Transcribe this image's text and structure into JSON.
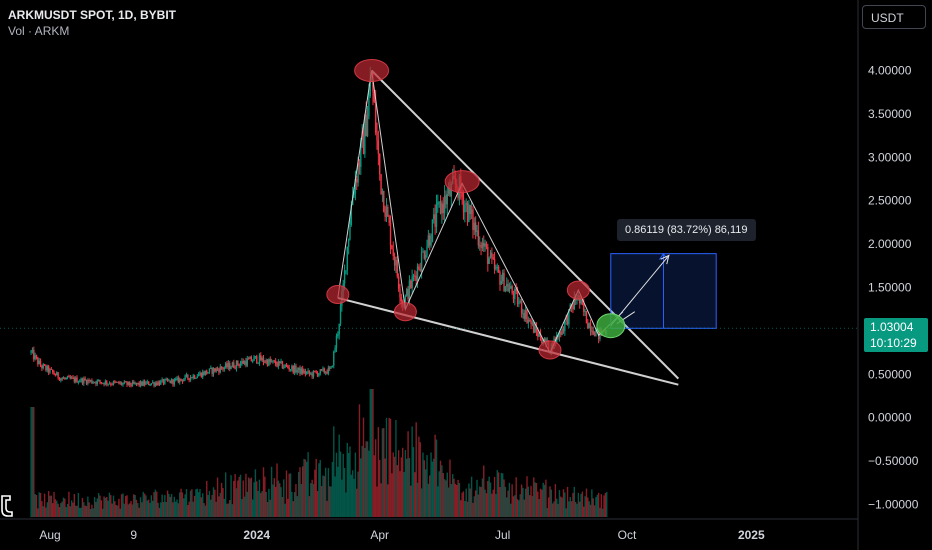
{
  "header": {
    "symbol_line": "ARKMUSDT SPOT, 1D, BYBIT",
    "volume_line": "Vol · ARKM"
  },
  "currency_button": "USDT",
  "price_tag": {
    "value": "1.03004",
    "countdown": "10:10:29"
  },
  "measure_label": "0.86119 (83.72%) 86,119",
  "colors": {
    "background": "#000000",
    "up": "#089981",
    "down": "#f23645",
    "axis_text": "#d1d4dc",
    "drawing": "#c8c8c8",
    "measure_box": "#2962ff"
  },
  "icons": {
    "tv_logo": "tradingview-logo-icon"
  },
  "chart_data": {
    "type": "candlestick",
    "y_axis": {
      "ticks": [
        "4.00000",
        "3.50000",
        "3.00000",
        "2.50000",
        "2.00000",
        "1.50000",
        "1.03004",
        "0.50000",
        "0.00000",
        "−0.50000",
        "−1.00000"
      ],
      "range": [
        -1.08,
        4.35
      ]
    },
    "x_axis": {
      "ticks": [
        "Aug",
        "9",
        "2024",
        "Apr",
        "Jul",
        "Oct",
        "2025"
      ],
      "range": [
        "2023-07-18",
        "2025-03-01"
      ]
    },
    "price_path": [
      [
        "2023-07-18",
        0.75
      ],
      [
        "2023-07-25",
        0.6
      ],
      [
        "2023-08-10",
        0.45
      ],
      [
        "2023-09-01",
        0.42
      ],
      [
        "2023-10-01",
        0.38
      ],
      [
        "2023-11-01",
        0.42
      ],
      [
        "2023-12-01",
        0.55
      ],
      [
        "2024-01-01",
        0.68
      ],
      [
        "2024-01-20",
        0.6
      ],
      [
        "2024-02-10",
        0.5
      ],
      [
        "2024-02-25",
        0.55
      ],
      [
        "2024-03-01",
        1.0
      ],
      [
        "2024-03-05",
        1.5
      ],
      [
        "2024-03-12",
        2.6
      ],
      [
        "2024-03-20",
        3.2
      ],
      [
        "2024-03-26",
        3.9
      ],
      [
        "2024-04-01",
        2.8
      ],
      [
        "2024-04-10",
        2.0
      ],
      [
        "2024-04-18",
        1.3
      ],
      [
        "2024-05-01",
        1.8
      ],
      [
        "2024-05-15",
        2.4
      ],
      [
        "2024-05-28",
        2.7
      ],
      [
        "2024-06-10",
        2.2
      ],
      [
        "2024-06-25",
        1.7
      ],
      [
        "2024-07-10",
        1.4
      ],
      [
        "2024-07-25",
        1.0
      ],
      [
        "2024-08-05",
        0.8
      ],
      [
        "2024-08-15",
        1.05
      ],
      [
        "2024-08-25",
        1.4
      ],
      [
        "2024-09-02",
        1.1
      ],
      [
        "2024-09-10",
        0.95
      ],
      [
        "2024-09-16",
        1.03
      ]
    ],
    "volume": {
      "peak_date": "2024-03-26"
    },
    "drawings": {
      "upper_trendline": [
        [
          "2024-03-26",
          4.0
        ],
        [
          "2024-11-08",
          0.45
        ]
      ],
      "lower_trendline": [
        [
          "2024-03-01",
          1.38
        ],
        [
          "2024-11-08",
          0.38
        ]
      ],
      "zigzag": [
        [
          "2024-03-01",
          1.38
        ],
        [
          "2024-03-26",
          4.0
        ],
        [
          "2024-04-20",
          1.25
        ],
        [
          "2024-06-01",
          2.7
        ],
        [
          "2024-08-05",
          0.75
        ],
        [
          "2024-08-26",
          1.47
        ],
        [
          "2024-09-10",
          0.95
        ],
        [
          "2024-09-28",
          1.22
        ]
      ],
      "pivot_markers_red": [
        [
          "2024-03-26",
          4.0
        ],
        [
          "2024-06-01",
          2.72
        ],
        [
          "2024-03-01",
          1.42
        ],
        [
          "2024-04-20",
          1.22
        ],
        [
          "2024-08-05",
          0.78
        ],
        [
          "2024-08-26",
          1.47
        ]
      ],
      "pivot_marker_green": [
        "2024-09-19",
        1.06
      ],
      "projection_arrow": [
        [
          "2024-09-19",
          1.06
        ],
        [
          "2024-11-01",
          1.87
        ]
      ],
      "measure_box": {
        "from": "2024-09-19",
        "to": "2024-12-06",
        "low": 1.03,
        "high": 1.89
      },
      "current_price": 1.03004
    }
  }
}
